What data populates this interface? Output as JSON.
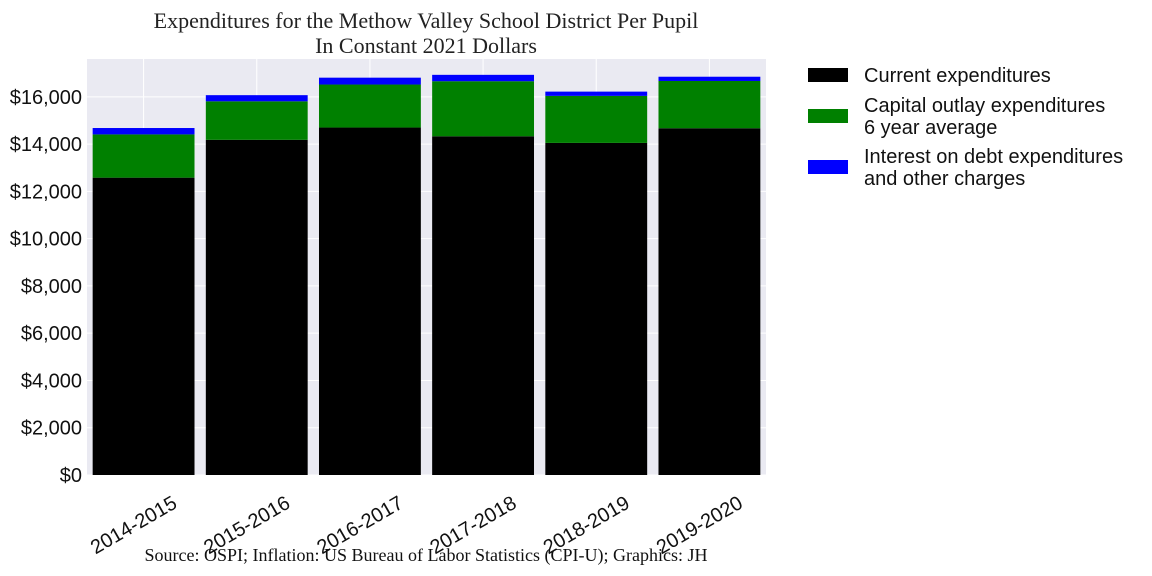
{
  "chart_data": {
    "type": "bar",
    "stacked": true,
    "title": "Expenditures for the Methow Valley School District Per Pupil",
    "subtitle": "In Constant 2021 Dollars",
    "categories": [
      "2014-2015",
      "2015-2016",
      "2016-2017",
      "2017-2018",
      "2018-2019",
      "2019-2020"
    ],
    "series": [
      {
        "name": "Current expenditures",
        "color": "#000000",
        "values": [
          12580,
          14180,
          14700,
          14330,
          14050,
          14670
        ]
      },
      {
        "name": "Capital outlay expenditures\n6 year average",
        "color": "#008000",
        "values": [
          1830,
          1630,
          1820,
          2330,
          1990,
          2000
        ]
      },
      {
        "name": "Interest on debt expenditures\nand other charges",
        "color": "#0000ff",
        "values": [
          270,
          260,
          290,
          270,
          180,
          180
        ]
      }
    ],
    "ylim": [
      0,
      17600
    ],
    "yticks": [
      0,
      2000,
      4000,
      6000,
      8000,
      10000,
      12000,
      14000,
      16000
    ],
    "ytick_labels": [
      "$0",
      "$2,000",
      "$4,000",
      "$6,000",
      "$8,000",
      "$10,000",
      "$12,000",
      "$14,000",
      "$16,000"
    ],
    "grid": true,
    "legend_position": "outside-right-top",
    "source": "Source: OSPI; Inflation: US Bureau of Labor Statistics (CPI-U); Graphics: JH"
  }
}
